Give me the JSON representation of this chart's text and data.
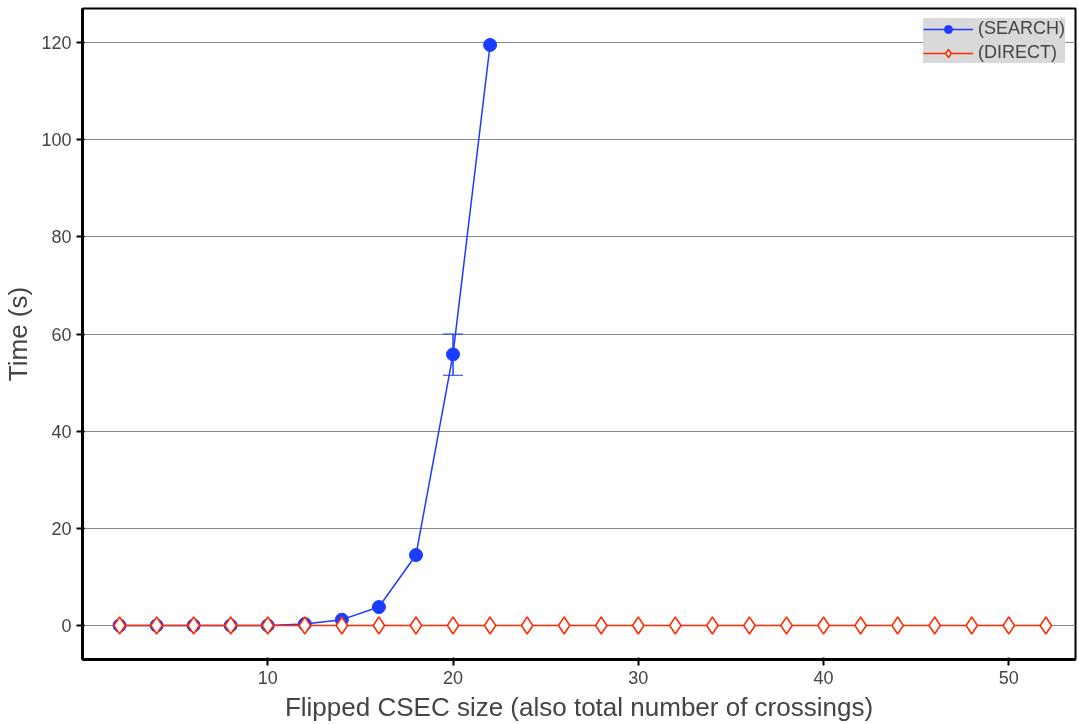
{
  "chart_data": {
    "type": "line",
    "xlabel": "Flipped CSEC size (also total number of crossings)",
    "ylabel": "Time (s)",
    "x": [
      2,
      4,
      6,
      8,
      10,
      12,
      14,
      16,
      18,
      20,
      22
    ],
    "series": [
      {
        "name": "(SEARCH)",
        "color": "#1a3cff",
        "marker": "circle",
        "values": [
          0,
          0,
          0,
          0,
          0,
          0.3,
          1.2,
          3.8,
          14.5,
          55.8,
          119.5
        ],
        "errors": [
          null,
          null,
          null,
          null,
          null,
          null,
          null,
          null,
          null,
          [
            51.5,
            60
          ],
          null
        ]
      },
      {
        "name": "(DIRECT)",
        "color": "#ff2a00",
        "marker": "diamond",
        "x": [
          2,
          4,
          6,
          8,
          10,
          12,
          14,
          16,
          18,
          20,
          22,
          24,
          26,
          28,
          30,
          32,
          34,
          36,
          38,
          40,
          42,
          44,
          46,
          48,
          50,
          52
        ],
        "values": [
          0,
          0,
          0,
          0,
          0,
          0,
          0,
          0,
          0,
          0,
          0,
          0,
          0,
          0,
          0,
          0,
          0,
          0,
          0,
          0,
          0,
          0,
          0,
          0,
          0,
          0
        ]
      }
    ],
    "xlim": [
      0,
      53.6
    ],
    "ylim": [
      -7,
      127
    ],
    "xticks": [
      10,
      20,
      30,
      40,
      50
    ],
    "yticks": [
      0,
      20,
      40,
      60,
      80,
      100,
      120
    ],
    "grid": "y",
    "legend": "top right",
    "line_style": "solid"
  }
}
